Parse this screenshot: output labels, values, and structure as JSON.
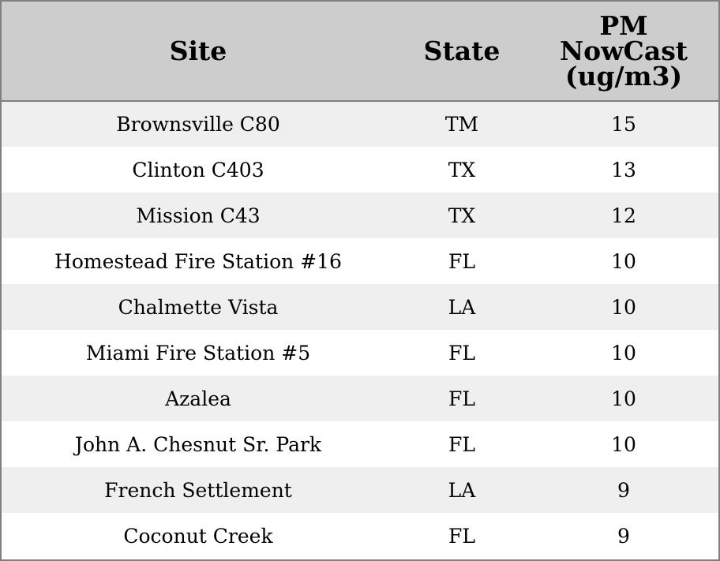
{
  "chart_data": {
    "type": "table",
    "columns": [
      "Site",
      "State",
      "PM NowCast (ug/m3)"
    ],
    "header_lines": {
      "pm": [
        "PM",
        "NowCast",
        "(ug/m3)"
      ]
    },
    "rows": [
      {
        "site": "Brownsville C80",
        "state": "TM",
        "pm": "15"
      },
      {
        "site": "Clinton C403",
        "state": "TX",
        "pm": "13"
      },
      {
        "site": "Mission C43",
        "state": "TX",
        "pm": "12"
      },
      {
        "site": "Homestead Fire Station #16",
        "state": "FL",
        "pm": "10"
      },
      {
        "site": "Chalmette Vista",
        "state": "LA",
        "pm": "10"
      },
      {
        "site": "Miami Fire Station #5",
        "state": "FL",
        "pm": "10"
      },
      {
        "site": "Azalea",
        "state": "FL",
        "pm": "10"
      },
      {
        "site": "John A. Chesnut Sr. Park",
        "state": "FL",
        "pm": "10"
      },
      {
        "site": "French Settlement",
        "state": "LA",
        "pm": "9"
      },
      {
        "site": "Coconut Creek",
        "state": "FL",
        "pm": "9"
      }
    ]
  },
  "colors": {
    "header_bg": "#cdcdcd",
    "row_alt_bg": "#efefef",
    "row_bg": "#ffffff",
    "border": "#808080"
  }
}
